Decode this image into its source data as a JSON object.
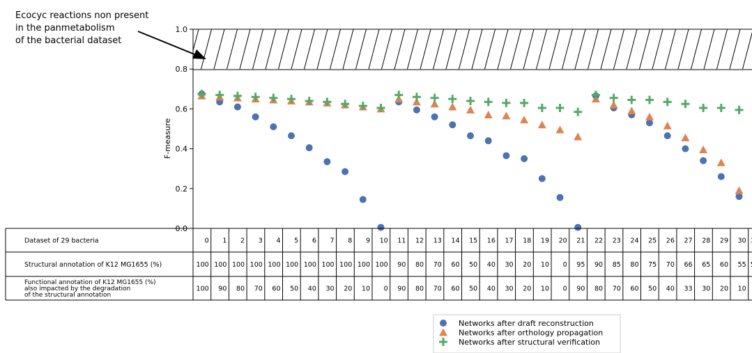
{
  "chart_data": {
    "type": "scatter",
    "ylabel": "F-measure",
    "ylim": [
      0.0,
      1.0
    ],
    "yticks": [
      "0.0",
      "0.2",
      "0.4",
      "0.6",
      "0.8",
      "1.0"
    ],
    "hatched_region": [
      0.8,
      1.0
    ],
    "annotation": {
      "lines": [
        "Ecocyc reactions non present",
        "in the panmetabolism",
        "of the bacterial dataset"
      ]
    },
    "x": [
      0,
      1,
      2,
      3,
      4,
      5,
      6,
      7,
      8,
      9,
      10,
      11,
      12,
      13,
      14,
      15,
      16,
      17,
      18,
      19,
      20,
      21,
      22,
      23,
      24,
      25,
      26,
      27,
      28,
      29,
      30,
      31
    ],
    "series": [
      {
        "name": "Networks after draft reconstruction",
        "marker": "circle",
        "color": "#4c72b0",
        "values": [
          0.675,
          0.635,
          0.61,
          0.56,
          0.51,
          0.465,
          0.405,
          0.335,
          0.285,
          0.145,
          0.005,
          0.635,
          0.595,
          0.56,
          0.52,
          0.465,
          0.44,
          0.365,
          0.35,
          0.25,
          0.155,
          0.005,
          0.665,
          0.605,
          0.57,
          0.53,
          0.465,
          0.4,
          0.34,
          0.26,
          0.16,
          null
        ]
      },
      {
        "name": "Networks after orthology propagation",
        "marker": "triangle",
        "color": "#dd8452",
        "values": [
          0.665,
          0.66,
          0.655,
          0.65,
          0.645,
          0.64,
          0.635,
          0.63,
          0.62,
          0.61,
          0.6,
          0.65,
          0.635,
          0.625,
          0.61,
          0.595,
          0.57,
          0.565,
          0.545,
          0.52,
          0.495,
          0.46,
          0.65,
          0.62,
          0.59,
          0.56,
          0.515,
          0.455,
          0.395,
          0.33,
          0.19,
          null
        ]
      },
      {
        "name": "Networks after structural verification",
        "marker": "plus",
        "color": "#55a868",
        "values": [
          0.675,
          0.67,
          0.665,
          0.66,
          0.655,
          0.65,
          0.64,
          0.635,
          0.625,
          0.615,
          0.605,
          0.67,
          0.66,
          0.655,
          0.65,
          0.64,
          0.635,
          0.63,
          0.63,
          0.605,
          0.605,
          0.585,
          0.67,
          0.655,
          0.645,
          0.645,
          0.635,
          0.625,
          0.605,
          0.605,
          0.595,
          0.595
        ]
      }
    ],
    "table": {
      "rows": [
        {
          "label": [
            "Dataset of 29 bacteria"
          ],
          "values": [
            "0",
            "1",
            "2",
            "3",
            "4",
            "5",
            "6",
            "7",
            "8",
            "9",
            "10",
            "11",
            "12",
            "13",
            "14",
            "15",
            "16",
            "17",
            "18",
            "19",
            "20",
            "21",
            "22",
            "23",
            "24",
            "25",
            "26",
            "27",
            "28",
            "29",
            "30",
            "3"
          ]
        },
        {
          "label": [
            "Structural annotation of K12 MG1655 (%)"
          ],
          "values": [
            "100",
            "100",
            "100",
            "100",
            "100",
            "100",
            "100",
            "100",
            "100",
            "100",
            "100",
            "90",
            "80",
            "70",
            "60",
            "50",
            "40",
            "30",
            "20",
            "10",
            "0",
            "95",
            "90",
            "85",
            "80",
            "75",
            "70",
            "66",
            "65",
            "60",
            "55",
            "5"
          ]
        },
        {
          "label": [
            "Functional annotation of K12 MG1655 (%)",
            "also impacted by the degradation",
            "of the structural annotation"
          ],
          "values": [
            "100",
            "90",
            "80",
            "70",
            "60",
            "50",
            "40",
            "30",
            "20",
            "10",
            "0",
            "90",
            "80",
            "70",
            "60",
            "50",
            "40",
            "30",
            "20",
            "10",
            "0",
            "90",
            "80",
            "70",
            "60",
            "50",
            "40",
            "33",
            "30",
            "20",
            "10",
            ""
          ]
        }
      ]
    },
    "legend": {
      "placement": "bottom-right"
    }
  }
}
